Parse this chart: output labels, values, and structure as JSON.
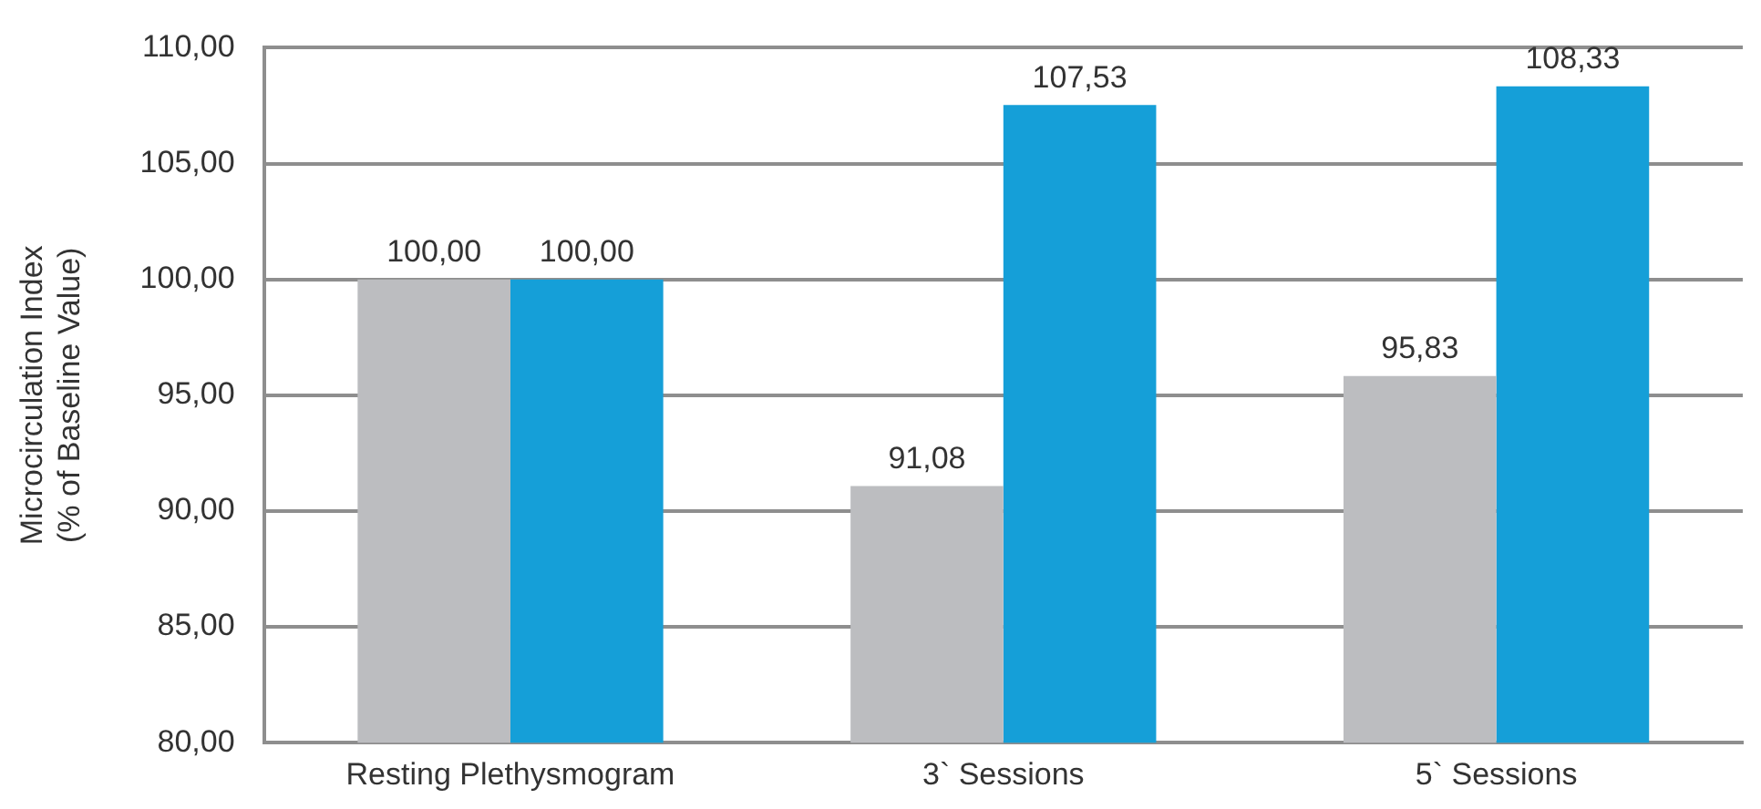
{
  "chart_data": {
    "type": "bar",
    "ylabel": "Microcirculation Index\n(% of Baseline Value)",
    "categories": [
      "Resting Plethysmogram",
      "3` Sessions",
      "5` Sessions"
    ],
    "series": [
      {
        "color": "#bcbdc0",
        "values": [
          100,
          91.08,
          95.83
        ],
        "value_labels": [
          "100,00",
          "91,08",
          "95,83"
        ]
      },
      {
        "color": "#159fd8",
        "values": [
          100,
          107.53,
          108.33
        ],
        "value_labels": [
          "100,00",
          "107,53",
          "108,33"
        ]
      }
    ],
    "ylim": [
      80,
      110
    ],
    "yticks": [
      {
        "value": 80,
        "label": "80,00"
      },
      {
        "value": 85,
        "label": "85,00"
      },
      {
        "value": 90,
        "label": "90,00"
      },
      {
        "value": 95,
        "label": "95,00"
      },
      {
        "value": 100,
        "label": "100,00"
      },
      {
        "value": 105,
        "label": "105,00"
      },
      {
        "value": 110,
        "label": "110,00"
      }
    ],
    "grid": "y",
    "legend": false
  }
}
